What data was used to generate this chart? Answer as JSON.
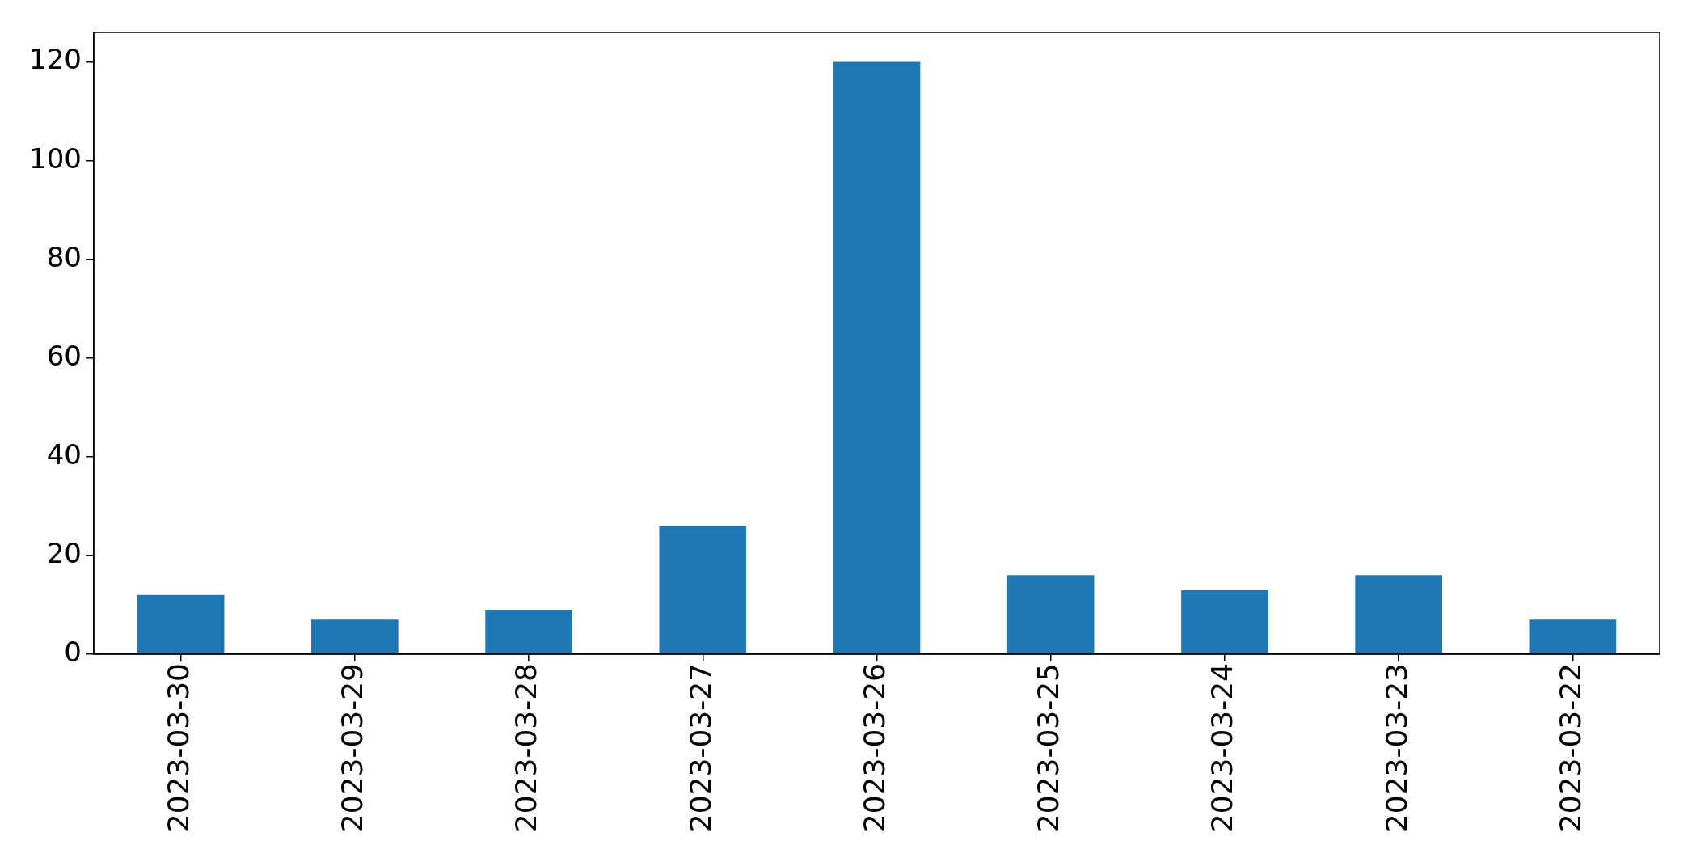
{
  "chart_data": {
    "type": "bar",
    "categories": [
      "2023-03-30",
      "2023-03-29",
      "2023-03-28",
      "2023-03-27",
      "2023-03-26",
      "2023-03-25",
      "2023-03-24",
      "2023-03-23",
      "2023-03-22"
    ],
    "values": [
      12,
      7,
      9,
      26,
      120,
      16,
      13,
      16,
      7
    ],
    "color": "#1f77b4",
    "ylim": [
      0,
      126
    ],
    "yticks": [
      0,
      20,
      40,
      60,
      80,
      100,
      120
    ]
  }
}
